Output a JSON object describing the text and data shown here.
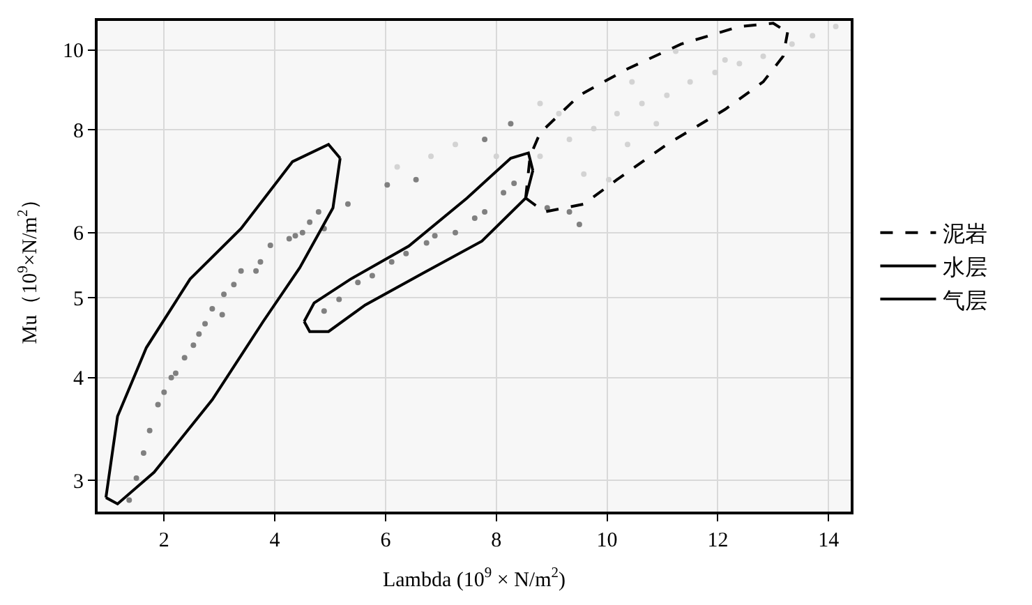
{
  "chart_data": {
    "type": "scatter",
    "xlabel": "Lambda (10$^{9}$ × N/m$^{2}$)",
    "ylabel": "Mu（10$^{9}$×N/m$^{2}$）",
    "xlim": [
      0.8,
      14.4
    ],
    "ylim": [
      2.75,
      10.85
    ],
    "xticks": [
      2,
      4,
      6,
      8,
      10,
      12,
      14
    ],
    "yticks": [
      3,
      4,
      5,
      6,
      8,
      10
    ],
    "log": "y",
    "grid": true,
    "legend": "right",
    "series": [
      {
        "color": "#808080",
        "marker": "circle",
        "x": [
          1.37,
          1.5,
          1.63,
          1.74,
          1.89,
          2.0,
          2.13,
          2.21,
          2.37,
          2.53,
          2.63,
          2.74,
          2.87,
          3.05,
          3.08,
          3.26,
          3.39,
          3.66,
          3.74,
          3.92,
          4.26,
          4.37,
          4.5,
          4.63,
          4.79,
          4.89
        ],
        "values": [
          2.84,
          3.02,
          3.24,
          3.45,
          3.71,
          3.84,
          4.0,
          4.05,
          4.23,
          4.38,
          4.52,
          4.65,
          4.85,
          4.77,
          5.05,
          5.19,
          5.39,
          5.39,
          5.53,
          5.79,
          5.9,
          5.95,
          6.0,
          6.18,
          6.36,
          6.07
        ]
      },
      {
        "color": "#808080",
        "marker": "circle",
        "x": [
          4.89,
          5.16,
          5.5,
          5.76,
          6.11,
          6.37,
          6.74,
          6.89,
          7.26,
          7.61,
          7.79,
          8.13,
          8.32,
          5.32,
          6.03,
          6.55,
          7.79,
          8.26,
          9.32,
          9.5,
          8.92
        ],
        "values": [
          4.82,
          4.98,
          5.22,
          5.32,
          5.53,
          5.66,
          5.83,
          5.95,
          6.0,
          6.25,
          6.36,
          6.71,
          6.89,
          6.5,
          6.86,
          6.96,
          7.79,
          8.14,
          6.36,
          6.14,
          6.43
        ]
      },
      {
        "color": "#d3d3d3",
        "marker": "circle",
        "x": [
          8.79,
          9.32,
          9.76,
          10.18,
          10.63,
          11.08,
          11.5,
          11.95,
          12.39,
          12.82,
          13.34,
          13.71,
          14.13,
          9.58,
          10.37,
          10.89,
          10.45,
          11.24,
          12.13,
          10.03,
          9.13,
          8.79,
          8.0,
          6.21,
          6.82,
          7.26
        ],
        "values": [
          7.43,
          7.79,
          8.03,
          8.37,
          8.61,
          8.81,
          9.15,
          9.39,
          9.63,
          9.83,
          10.17,
          10.41,
          10.68,
          7.07,
          7.68,
          8.14,
          9.15,
          9.97,
          9.73,
          6.96,
          8.37,
          8.61,
          7.43,
          7.21,
          7.43,
          7.68
        ]
      },
      {
        "type": "line",
        "name": "泥岩",
        "color": "#000000",
        "line_style": "dashed",
        "marker": "none",
        "x": [
          8.53,
          8.61,
          8.79,
          9.5,
          10.37,
          11.34,
          12.39,
          13.0,
          13.26
        ],
        "values": [
          6.61,
          7.43,
          7.93,
          8.81,
          9.49,
          10.17,
          10.68,
          10.78,
          10.51
        ]
      },
      {
        "type": "line",
        "color": "#000000",
        "line_style": "dashed",
        "marker": "none",
        "x": [
          8.53,
          8.87,
          9.58,
          10.18,
          11.08,
          12.13,
          12.82,
          13.18,
          13.26
        ],
        "values": [
          6.61,
          6.36,
          6.5,
          6.96,
          7.68,
          8.47,
          9.15,
          9.83,
          10.51
        ]
      },
      {
        "type": "line",
        "name": "水层",
        "color": "#000000",
        "line_style": "solid",
        "marker": "none",
        "x": [
          4.53,
          4.71,
          5.37,
          6.42,
          7.47,
          8.26,
          8.58,
          8.66
        ],
        "values": [
          4.68,
          4.93,
          5.27,
          5.78,
          6.61,
          7.39,
          7.5,
          7.14
        ]
      },
      {
        "type": "line",
        "color": "#000000",
        "line_style": "solid",
        "marker": "none",
        "x": [
          4.53,
          4.63,
          4.97,
          5.63,
          6.68,
          7.74,
          8.53,
          8.66
        ],
        "values": [
          4.68,
          4.55,
          4.55,
          4.9,
          5.36,
          5.86,
          6.61,
          7.14
        ]
      },
      {
        "type": "line",
        "name": "气层",
        "color": "#000000",
        "line_style": "solid",
        "marker": "none",
        "x": [
          0.95,
          1.16,
          1.68,
          2.47,
          3.39,
          4.32,
          4.97,
          5.18
        ],
        "values": [
          2.86,
          3.59,
          4.35,
          5.27,
          6.07,
          7.32,
          7.68,
          7.39
        ]
      },
      {
        "type": "line",
        "color": "#000000",
        "line_style": "solid",
        "marker": "none",
        "x": [
          0.95,
          1.16,
          1.82,
          2.87,
          3.79,
          4.45,
          5.05,
          5.18
        ],
        "values": [
          2.86,
          2.81,
          3.07,
          3.76,
          4.68,
          5.44,
          6.43,
          7.39
        ]
      }
    ]
  }
}
